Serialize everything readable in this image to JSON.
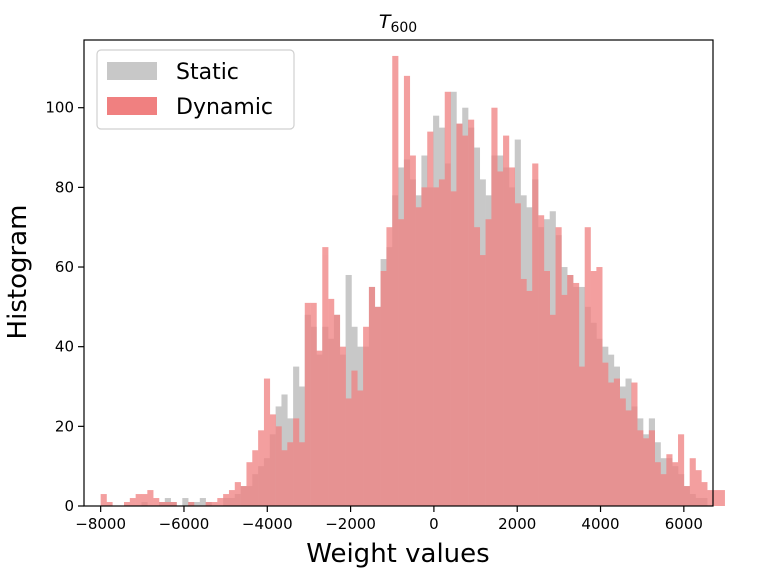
{
  "chart_data": {
    "type": "bar",
    "title_main": "T",
    "title_sub": "600",
    "xlabel": "Weight values",
    "ylabel": "Histogram",
    "xlim": [
      -8400,
      6700
    ],
    "ylim": [
      0,
      117
    ],
    "xticks": [
      -8000,
      -6000,
      -4000,
      -2000,
      0,
      2000,
      4000,
      6000
    ],
    "xtick_labels": [
      "−8000",
      "−6000",
      "−4000",
      "−2000",
      "0",
      "2000",
      "4000",
      "6000"
    ],
    "yticks": [
      0,
      20,
      40,
      60,
      80,
      100
    ],
    "ytick_labels": [
      "0",
      "20",
      "40",
      "60",
      "80",
      "100"
    ],
    "grid": false,
    "legend_position": "top-left",
    "bin_start": -8000,
    "bin_width": 140,
    "series": [
      {
        "name": "Static",
        "color": "#c8c8c8",
        "values": [
          0,
          0,
          0,
          0,
          0,
          0,
          0,
          1,
          0,
          0,
          1,
          2,
          1,
          0,
          2,
          1,
          1,
          2,
          1,
          0,
          0,
          2,
          2,
          3,
          5,
          5,
          8,
          10,
          12,
          18,
          25,
          28,
          22,
          35,
          30,
          48,
          45,
          38,
          45,
          42,
          48,
          38,
          58,
          45,
          40,
          40,
          55,
          50,
          62,
          65,
          78,
          85,
          87,
          82,
          78,
          88,
          80,
          98,
          95,
          86,
          104,
          96,
          100,
          95,
          90,
          82,
          78,
          88,
          88,
          85,
          80,
          92,
          78,
          75,
          82,
          70,
          72,
          74,
          68,
          60,
          58,
          55,
          55,
          50,
          46,
          42,
          40,
          38,
          35,
          30,
          32,
          25,
          22,
          18,
          22,
          16,
          12,
          12,
          10,
          8,
          5,
          3,
          2,
          2,
          0,
          0,
          0
        ]
      },
      {
        "name": "Dynamic",
        "color": "#f08080",
        "values": [
          3,
          1,
          0,
          0,
          1,
          2,
          3,
          3,
          4,
          2,
          1,
          1,
          1,
          0,
          0,
          1,
          0,
          0,
          1,
          1,
          2,
          3,
          4,
          6,
          5,
          11,
          14,
          19,
          32,
          23,
          20,
          14,
          16,
          22,
          16,
          51,
          51,
          39,
          65,
          52,
          48,
          40,
          27,
          34,
          29,
          45,
          55,
          50,
          59,
          70,
          113,
          72,
          108,
          88,
          75,
          80,
          94,
          80,
          82,
          104,
          79,
          96,
          93,
          97,
          70,
          63,
          72,
          100,
          84,
          93,
          85,
          76,
          57,
          54,
          86,
          73,
          59,
          48,
          70,
          53,
          58,
          56,
          35,
          70,
          59,
          60,
          36,
          31,
          32,
          27,
          24,
          31,
          19,
          17,
          19,
          11,
          8,
          13,
          11,
          18,
          5,
          12,
          9,
          6,
          4,
          4,
          4,
          0
        ]
      }
    ]
  }
}
